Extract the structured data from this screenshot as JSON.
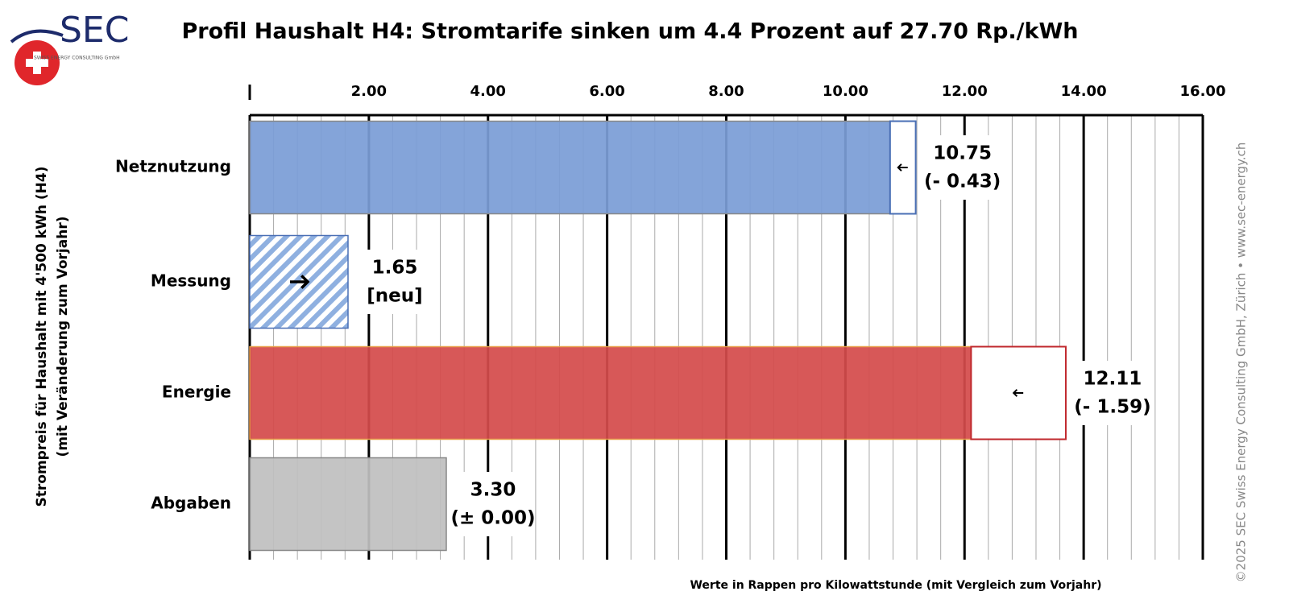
{
  "chart_data": {
    "type": "bar",
    "orientation": "horizontal",
    "title": "Profil Haushalt H4: Stromtarife sinken um 4.4 Prozent auf 27.70 Rp./kWh",
    "y_label": [
      "Strompreis für Haushalt mit 4'500 kWh (H4)",
      "(mit Veränderung zum Vorjahr)"
    ],
    "x_label": "Werte in Rappen pro Kilowattstunde (mit Vergleich zum Vorjahr)",
    "categories": [
      "Netznutzung",
      "Messung",
      "Energie",
      "Abgaben"
    ],
    "values": [
      10.75,
      1.65,
      12.11,
      3.3
    ],
    "value_labels": [
      "10.75",
      "1.65",
      "12.11",
      "3.30"
    ],
    "colors": [
      "#7b9dd6",
      "#7b9dd6",
      "#d44b4b",
      "#c0c0c0"
    ],
    "hatched": [
      false,
      true,
      false,
      false
    ],
    "changes": {
      "values": [
        -0.43,
        null,
        -1.59,
        0
      ],
      "value_labels": [
        "(- 0.43)",
        "[neu]",
        "(- 1.59)",
        "(± 0.00)"
      ]
    },
    "xlim": [
      0,
      16
    ],
    "xticks": [
      {
        "value": 2,
        "label": "2.00"
      },
      {
        "value": 4,
        "label": "4.00"
      },
      {
        "value": 6,
        "label": "6.00"
      },
      {
        "value": 8,
        "label": "8.00"
      },
      {
        "value": 10,
        "label": "10.00"
      },
      {
        "value": 12,
        "label": "12.00"
      },
      {
        "value": 14,
        "label": "14.00"
      },
      {
        "value": 16,
        "label": "16.00"
      }
    ],
    "grid": true,
    "logo": {
      "text": "SEC",
      "subtext": "SWISS ENERGY CONSULTING GmbH"
    },
    "copyright": "©2025 SEC Swiss Energy Consulting GmbH, Zürich • www.sec-energy.ch"
  }
}
